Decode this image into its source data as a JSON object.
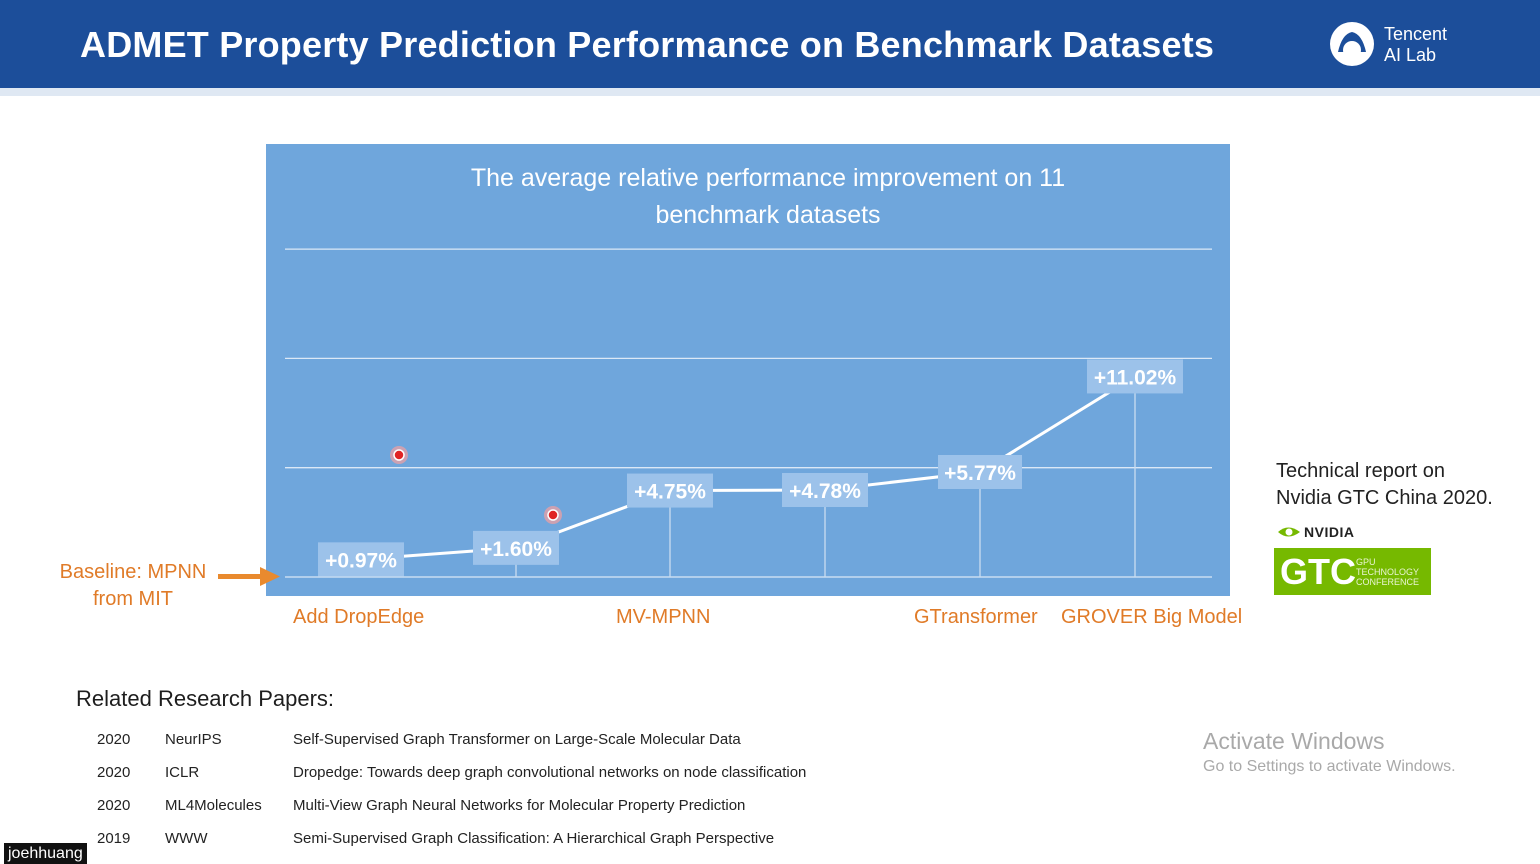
{
  "header": {
    "title": "ADMET Property Prediction Performance on Benchmark Datasets",
    "logo_line1": "Tencent",
    "logo_line2": "AI Lab"
  },
  "chart_data": {
    "type": "line",
    "title": "The average relative performance improvement on 11 benchmark datasets",
    "title_line1": "The average relative performance improvement on 11",
    "title_line2": "benchmark datasets",
    "categories": [
      "Add DropEdge",
      "",
      "MV-MPNN",
      "",
      "GTransformer",
      "GROVER Big Model"
    ],
    "values": [
      0.97,
      1.6,
      4.75,
      4.78,
      5.77,
      11.02
    ],
    "data_labels": [
      "+0.97%",
      "+1.60%",
      "+4.75%",
      "+4.78%",
      "+5.77%",
      "+11.02%"
    ],
    "ylim": [
      0,
      12
    ],
    "grid": true,
    "accent_color": "#6fa6dc",
    "label_color": "#e07b28"
  },
  "baseline": {
    "line1": "Baseline: MPNN",
    "line2": "from MIT"
  },
  "report": {
    "line1": "Technical report on",
    "line2": "Nvidia GTC China 2020.",
    "nvidia": "NVIDIA",
    "gtc": "GTC",
    "gtc_small1": "GPU",
    "gtc_small2": "TECHNOLOGY",
    "gtc_small3": "CONFERENCE"
  },
  "papers": {
    "title": "Related Research Papers:",
    "rows": [
      {
        "year": "2020",
        "venue": "NeurIPS",
        "title": "Self-Supervised Graph Transformer on Large-Scale Molecular Data"
      },
      {
        "year": "2020",
        "venue": "ICLR",
        "title": "Dropedge: Towards deep graph convolutional networks on node classification"
      },
      {
        "year": "2020",
        "venue": "ML4Molecules",
        "title": "Multi-View Graph Neural Networks for Molecular Property Prediction"
      },
      {
        "year": "2019",
        "venue": "WWW",
        "title": "Semi-Supervised Graph Classification: A Hierarchical Graph Perspective"
      }
    ]
  },
  "watermark": {
    "line1": "Activate Windows",
    "line2": "Go to Settings to activate Windows."
  },
  "user_tag": "joehhuang"
}
